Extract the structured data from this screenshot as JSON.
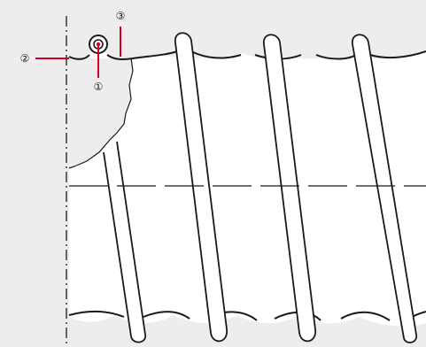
{
  "colors": {
    "background": "#ededed",
    "line": "#1a1a1a",
    "callout_leader": "#d4002a",
    "body_fill": "#ffffff"
  },
  "callouts": [
    {
      "label": "①",
      "target": "reinforcing-wire-section"
    },
    {
      "label": "②",
      "target": "hose-inner-wall"
    },
    {
      "label": "③",
      "target": "hose-outer-cover"
    }
  ],
  "wire_turns_visible": 4
}
